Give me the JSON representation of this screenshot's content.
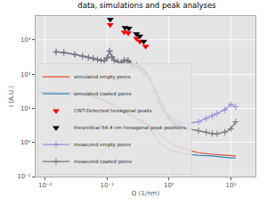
{
  "chart_data": {
    "type": "line",
    "title": "data, simulations and peak analyses",
    "x_label": "Q (1/nm)",
    "y_label": "I (A.U.)",
    "log": true,
    "grid": true,
    "legend": "lower left",
    "xlim": [
      0.007,
      25
    ],
    "ylim": [
      0.1,
      5000
    ],
    "xticks": [
      {
        "value": 0.01,
        "label": "10⁻²"
      },
      {
        "value": 0.1,
        "label": "10⁻¹"
      },
      {
        "value": 1,
        "label": "10⁰"
      },
      {
        "value": 10,
        "label": "10¹"
      }
    ],
    "yticks": [
      {
        "value": 0.1,
        "label": "10⁻¹"
      },
      {
        "value": 1,
        "label": "10⁰"
      },
      {
        "value": 10,
        "label": "10¹"
      },
      {
        "value": 100,
        "label": "10²"
      },
      {
        "value": 1000,
        "label": "10³"
      }
    ],
    "series": [
      {
        "name": "simulated empty pores",
        "type": "line",
        "color": "#E24A33",
        "line_style": "solid",
        "x": [
          0.008,
          0.01,
          0.02,
          0.03,
          0.05,
          0.07,
          0.1,
          0.15,
          0.2,
          0.3,
          0.4,
          0.5,
          0.7,
          1,
          1.5,
          2,
          3,
          5,
          10,
          12
        ],
        "values": [
          28,
          28,
          27,
          26,
          24,
          20,
          15,
          10,
          7,
          5,
          4,
          3,
          1.8,
          1,
          0.7,
          0.6,
          0.5,
          0.45,
          0.4,
          0.4
        ]
      },
      {
        "name": "simulated coated pores",
        "type": "line",
        "color": "#348ABD",
        "line_style": "solid",
        "x": [
          0.008,
          0.01,
          0.02,
          0.03,
          0.05,
          0.07,
          0.1,
          0.15,
          0.2,
          0.3,
          0.4,
          0.5,
          0.7,
          1,
          1.5,
          2,
          3,
          5,
          10,
          12
        ],
        "values": [
          30,
          30,
          29,
          28,
          26,
          21,
          16,
          11,
          8,
          5,
          3.5,
          2.5,
          1,
          0.6,
          0.5,
          0.45,
          0.42,
          0.4,
          0.35,
          0.35
        ]
      },
      {
        "name": "CWT-Detected hexagonal peaks",
        "type": "scatter",
        "color": "#FF0000",
        "marker": "triangle-down",
        "x": [
          0.112,
          0.19,
          0.22,
          0.3,
          0.34,
          0.42
        ],
        "values": [
          2800,
          1700,
          1600,
          1100,
          900,
          650
        ]
      },
      {
        "name": "theoretical 64.4 nm hexagonal peak positions",
        "type": "scatter",
        "color": "#000000",
        "marker": "triangle-down",
        "x": [
          0.1127,
          0.1952,
          0.2254,
          0.2982,
          0.3381,
          0.3904
        ],
        "values": [
          4000,
          2300,
          2200,
          1500,
          1300,
          900
        ]
      },
      {
        "name": "measured empty pores",
        "type": "line",
        "color": "#988ED5",
        "marker": "plus",
        "line_style": "solid",
        "x": [
          0.015,
          0.02,
          0.03,
          0.04,
          0.05,
          0.06,
          0.07,
          0.08,
          0.09,
          0.1,
          0.11,
          0.12,
          0.13,
          0.15,
          0.17,
          0.19,
          0.21,
          0.22,
          0.24,
          0.27,
          0.3,
          0.34,
          0.38,
          0.42,
          0.5,
          0.6,
          0.7,
          0.8,
          1,
          1.2,
          1.5,
          2,
          3,
          4,
          5,
          6,
          8,
          10,
          12
        ],
        "values": [
          440,
          420,
          370,
          330,
          300,
          280,
          260,
          245,
          245,
          290,
          460,
          310,
          250,
          225,
          215,
          250,
          235,
          240,
          195,
          165,
          170,
          150,
          120,
          100,
          65,
          32,
          18,
          11,
          6,
          4.5,
          3.8,
          3.6,
          4,
          5,
          6,
          7,
          9,
          13,
          11
        ]
      },
      {
        "name": "measured coated pores",
        "type": "line",
        "color": "#777777",
        "marker": "plus",
        "line_style": "solid",
        "x": [
          0.015,
          0.02,
          0.03,
          0.04,
          0.05,
          0.06,
          0.07,
          0.08,
          0.09,
          0.1,
          0.11,
          0.12,
          0.13,
          0.15,
          0.17,
          0.19,
          0.21,
          0.22,
          0.24,
          0.27,
          0.3,
          0.34,
          0.38,
          0.42,
          0.5,
          0.6,
          0.7,
          0.8,
          1,
          1.2,
          1.5,
          2,
          3,
          4,
          5,
          6,
          8,
          10,
          12
        ],
        "values": [
          450,
          430,
          380,
          340,
          310,
          290,
          270,
          250,
          250,
          300,
          480,
          320,
          260,
          230,
          220,
          260,
          240,
          250,
          200,
          170,
          180,
          160,
          130,
          110,
          70,
          30,
          15,
          9,
          5,
          3.5,
          3,
          2.5,
          2.2,
          2,
          1.8,
          1.8,
          2,
          2.5,
          4
        ]
      }
    ]
  }
}
